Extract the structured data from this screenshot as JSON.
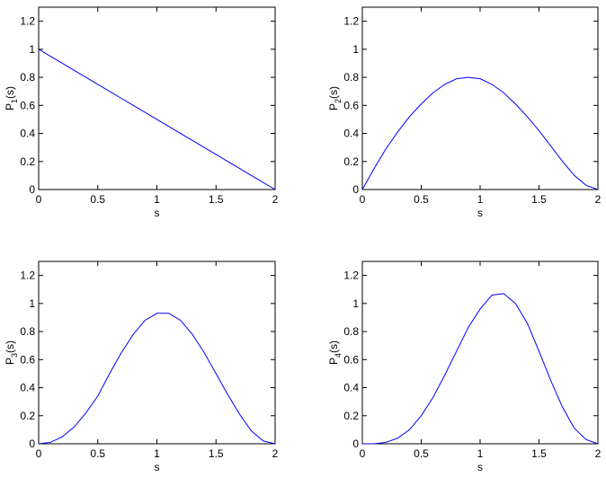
{
  "chart_data": [
    {
      "type": "line",
      "x": [
        0,
        0.1,
        0.2,
        0.3,
        0.4,
        0.5,
        0.6,
        0.7,
        0.8,
        0.9,
        1,
        1.1,
        1.2,
        1.3,
        1.4,
        1.5,
        1.6,
        1.7,
        1.8,
        1.9,
        2
      ],
      "series": [
        {
          "color": "#0000ff",
          "values": [
            1,
            0.95,
            0.9,
            0.85,
            0.8,
            0.75,
            0.7,
            0.65,
            0.6,
            0.55,
            0.5,
            0.45,
            0.4,
            0.35,
            0.3,
            0.25,
            0.2,
            0.15,
            0.1,
            0.05,
            0
          ]
        }
      ],
      "xlabel": "s",
      "ylabel": [
        "P",
        "1",
        "(s)"
      ],
      "xlim": [
        0,
        2
      ],
      "ylim": [
        0,
        1.3
      ],
      "xticks": [
        0,
        0.5,
        1,
        1.5,
        2
      ],
      "yticks": [
        0,
        0.2,
        0.4,
        0.6,
        0.8,
        1,
        1.2
      ]
    },
    {
      "type": "line",
      "x": [
        0,
        0.1,
        0.2,
        0.3,
        0.4,
        0.5,
        0.6,
        0.7,
        0.8,
        0.9,
        1,
        1.1,
        1.2,
        1.3,
        1.4,
        1.5,
        1.6,
        1.7,
        1.8,
        1.9,
        2
      ],
      "series": [
        {
          "color": "#0000ff",
          "values": [
            0,
            0.15,
            0.29,
            0.41,
            0.52,
            0.61,
            0.69,
            0.75,
            0.79,
            0.8,
            0.79,
            0.75,
            0.69,
            0.61,
            0.52,
            0.42,
            0.31,
            0.2,
            0.1,
            0.03,
            0
          ]
        }
      ],
      "xlabel": "s",
      "ylabel": [
        "P",
        "2",
        "(s)"
      ],
      "xlim": [
        0,
        2
      ],
      "ylim": [
        0,
        1.3
      ],
      "xticks": [
        0,
        0.5,
        1,
        1.5,
        2
      ],
      "yticks": [
        0,
        0.2,
        0.4,
        0.6,
        0.8,
        1,
        1.2
      ]
    },
    {
      "type": "line",
      "x": [
        0,
        0.1,
        0.2,
        0.3,
        0.4,
        0.5,
        0.6,
        0.7,
        0.8,
        0.9,
        1,
        1.1,
        1.2,
        1.3,
        1.4,
        1.5,
        1.6,
        1.7,
        1.8,
        1.9,
        2
      ],
      "series": [
        {
          "color": "#0000ff",
          "values": [
            0,
            0.01,
            0.05,
            0.12,
            0.22,
            0.34,
            0.5,
            0.65,
            0.78,
            0.88,
            0.93,
            0.93,
            0.88,
            0.78,
            0.65,
            0.5,
            0.35,
            0.21,
            0.09,
            0.02,
            0
          ]
        }
      ],
      "xlabel": "s",
      "ylabel": [
        "P",
        "3",
        "(s)"
      ],
      "xlim": [
        0,
        2
      ],
      "ylim": [
        0,
        1.3
      ],
      "xticks": [
        0,
        0.5,
        1,
        1.5,
        2
      ],
      "yticks": [
        0,
        0.2,
        0.4,
        0.6,
        0.8,
        1,
        1.2
      ]
    },
    {
      "type": "line",
      "x": [
        0,
        0.1,
        0.2,
        0.3,
        0.4,
        0.5,
        0.6,
        0.7,
        0.8,
        0.9,
        1,
        1.1,
        1.2,
        1.3,
        1.4,
        1.5,
        1.6,
        1.7,
        1.8,
        1.9,
        2
      ],
      "series": [
        {
          "color": "#0000ff",
          "values": [
            0,
            0,
            0.01,
            0.04,
            0.1,
            0.2,
            0.33,
            0.49,
            0.66,
            0.83,
            0.96,
            1.06,
            1.07,
            1,
            0.86,
            0.66,
            0.45,
            0.26,
            0.11,
            0.03,
            0
          ]
        }
      ],
      "xlabel": "s",
      "ylabel": [
        "P",
        "4",
        "(s)"
      ],
      "xlim": [
        0,
        2
      ],
      "ylim": [
        0,
        1.3
      ],
      "xticks": [
        0,
        0.5,
        1,
        1.5,
        2
      ],
      "yticks": [
        0,
        0.2,
        0.4,
        0.6,
        0.8,
        1,
        1.2
      ]
    }
  ]
}
